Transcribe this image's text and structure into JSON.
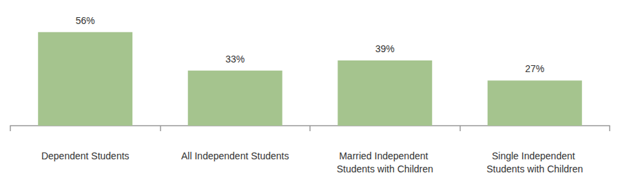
{
  "chart_data": {
    "type": "bar",
    "categories": [
      "Dependent Students",
      "All Independent Students",
      "Married Independent Students with Children",
      "Single Independent Students with Children"
    ],
    "values": [
      56,
      33,
      39,
      27
    ],
    "value_labels": [
      "56%",
      "33%",
      "39%",
      "27%"
    ],
    "color": "#a5c48e",
    "ylim": [
      0,
      60
    ],
    "grid": false,
    "data_labels": true,
    "tick_labels": "x"
  }
}
